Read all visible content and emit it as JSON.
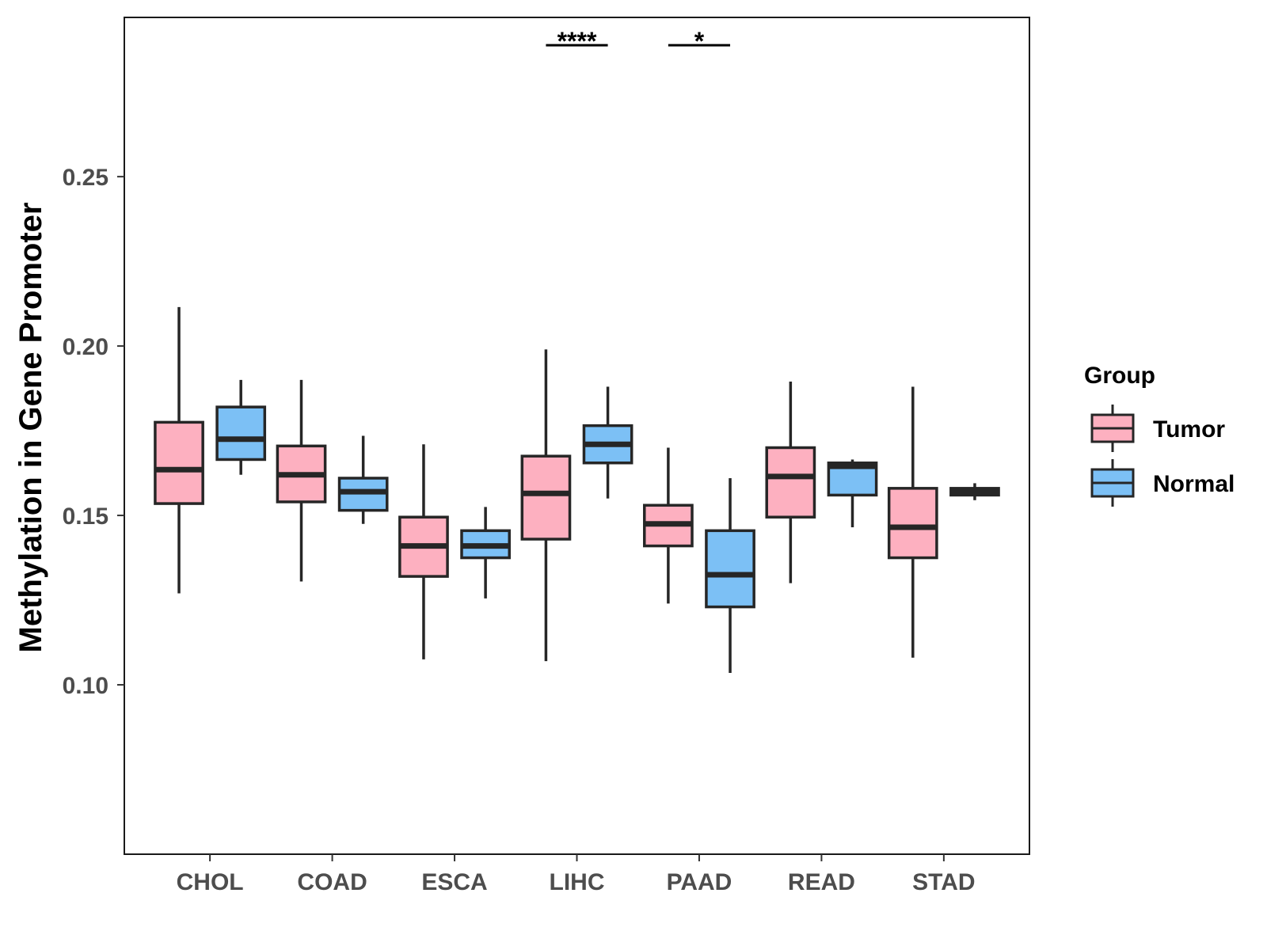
{
  "chart_data": {
    "type": "boxplot",
    "title": "",
    "xlabel": "",
    "ylabel": "Methylation in Gene Promoter",
    "ylim": [
      0.05,
      0.297
    ],
    "yticks": [
      0.1,
      0.15,
      0.2,
      0.25
    ],
    "ytick_labels": [
      "0.10",
      "0.15",
      "0.20",
      "0.25"
    ],
    "categories": [
      "CHOL",
      "COAD",
      "ESCA",
      "LIHC",
      "PAAD",
      "READ",
      "STAD"
    ],
    "grid": false,
    "legend": {
      "title": "Group",
      "placement": "right",
      "entries": [
        {
          "name": "Tumor",
          "color": "#FDB0C0"
        },
        {
          "name": "Normal",
          "color": "#7CC0F5"
        }
      ]
    },
    "series": [
      {
        "name": "Tumor",
        "color": "#FDB0C0",
        "boxes": [
          {
            "min": 0.127,
            "q1": 0.1535,
            "median": 0.1635,
            "q3": 0.1775,
            "max": 0.2115
          },
          {
            "min": 0.1305,
            "q1": 0.154,
            "median": 0.162,
            "q3": 0.1705,
            "max": 0.19
          },
          {
            "min": 0.1075,
            "q1": 0.132,
            "median": 0.141,
            "q3": 0.1495,
            "max": 0.171
          },
          {
            "min": 0.107,
            "q1": 0.143,
            "median": 0.1565,
            "q3": 0.1675,
            "max": 0.199
          },
          {
            "min": 0.124,
            "q1": 0.141,
            "median": 0.1475,
            "q3": 0.153,
            "max": 0.17
          },
          {
            "min": 0.13,
            "q1": 0.1495,
            "median": 0.1615,
            "q3": 0.17,
            "max": 0.1895
          },
          {
            "min": 0.108,
            "q1": 0.1375,
            "median": 0.1465,
            "q3": 0.158,
            "max": 0.188
          }
        ]
      },
      {
        "name": "Normal",
        "color": "#7CC0F5",
        "boxes": [
          {
            "min": 0.162,
            "q1": 0.1665,
            "median": 0.1725,
            "q3": 0.182,
            "max": 0.19
          },
          {
            "min": 0.1475,
            "q1": 0.1515,
            "median": 0.157,
            "q3": 0.161,
            "max": 0.1735
          },
          {
            "min": 0.1255,
            "q1": 0.1375,
            "median": 0.141,
            "q3": 0.1455,
            "max": 0.1525
          },
          {
            "min": 0.155,
            "q1": 0.1655,
            "median": 0.171,
            "q3": 0.1765,
            "max": 0.188
          },
          {
            "min": 0.1035,
            "q1": 0.123,
            "median": 0.1325,
            "q3": 0.1455,
            "max": 0.161
          },
          {
            "min": 0.1465,
            "q1": 0.156,
            "median": 0.1645,
            "q3": 0.1655,
            "max": 0.1665
          },
          {
            "min": 0.1545,
            "q1": 0.156,
            "median": 0.157,
            "q3": 0.158,
            "max": 0.1595
          }
        ]
      }
    ],
    "annotations": [
      {
        "category": "LIHC",
        "label": "****",
        "y": 0.2888
      },
      {
        "category": "PAAD",
        "label": "*",
        "y": 0.2888
      }
    ]
  }
}
